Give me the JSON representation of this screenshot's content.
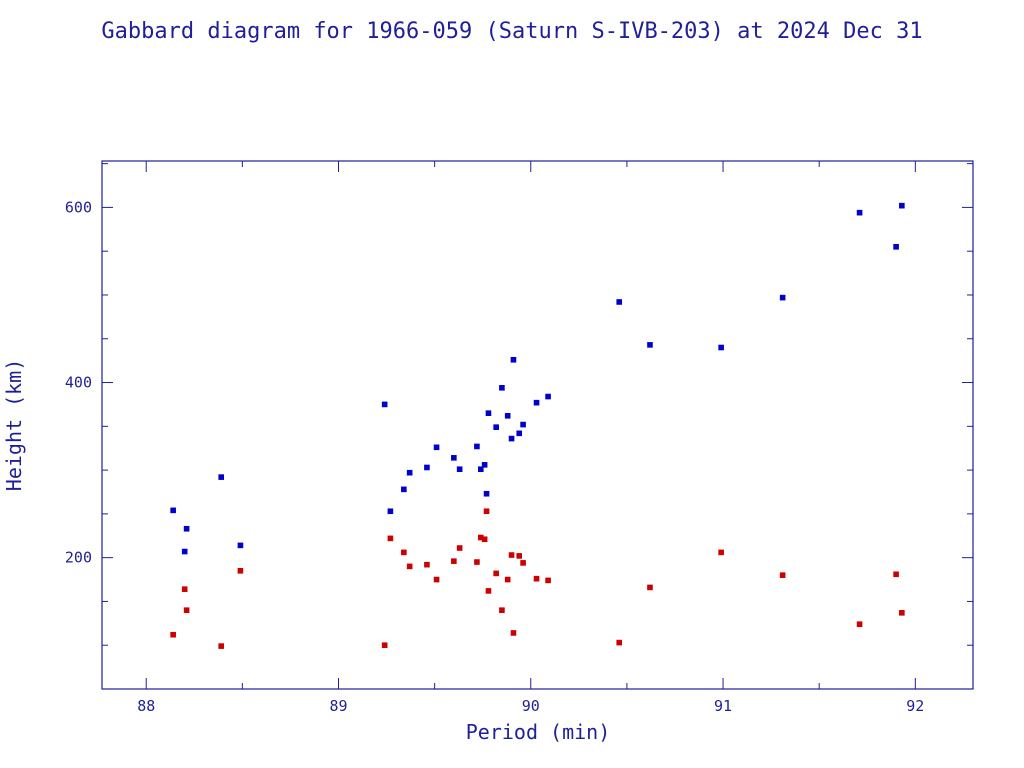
{
  "chart_data": {
    "type": "scatter",
    "title": "Gabbard diagram for 1966-059 (Saturn S-IVB-203) at 2024 Dec 31",
    "xlabel": "Period (min)",
    "ylabel": "Height (km)",
    "xlim": [
      87.77,
      92.3
    ],
    "ylim": [
      50,
      653
    ],
    "x_major_ticks": [
      88,
      89,
      90,
      91,
      92
    ],
    "x_minor_step": 0.5,
    "y_major_ticks": [
      200,
      400,
      600
    ],
    "y_minor_step": 50,
    "grid": false,
    "colors": {
      "text": "#1f1f99",
      "axis": "#1f1f99",
      "apogee": "#0000cc",
      "perigee": "#cc0000"
    },
    "series": [
      {
        "role": "apogee",
        "color": "#0000cc",
        "points": [
          [
            88.14,
            254
          ],
          [
            88.2,
            207
          ],
          [
            88.21,
            233
          ],
          [
            88.39,
            292
          ],
          [
            88.49,
            214
          ],
          [
            89.24,
            375
          ],
          [
            89.27,
            253
          ],
          [
            89.34,
            278
          ],
          [
            89.37,
            297
          ],
          [
            89.46,
            303
          ],
          [
            89.51,
            326
          ],
          [
            89.6,
            314
          ],
          [
            89.63,
            301
          ],
          [
            89.72,
            327
          ],
          [
            89.74,
            301
          ],
          [
            89.76,
            306
          ],
          [
            89.77,
            273
          ],
          [
            89.78,
            365
          ],
          [
            89.82,
            349
          ],
          [
            89.85,
            394
          ],
          [
            89.88,
            362
          ],
          [
            89.9,
            336
          ],
          [
            89.91,
            426
          ],
          [
            89.94,
            342
          ],
          [
            89.96,
            352
          ],
          [
            90.03,
            377
          ],
          [
            90.09,
            384
          ],
          [
            90.46,
            492
          ],
          [
            90.62,
            443
          ],
          [
            90.99,
            440
          ],
          [
            91.31,
            497
          ],
          [
            91.71,
            594
          ],
          [
            91.9,
            555
          ],
          [
            91.93,
            602
          ]
        ]
      },
      {
        "role": "perigee",
        "color": "#cc0000",
        "points": [
          [
            88.14,
            112
          ],
          [
            88.2,
            164
          ],
          [
            88.21,
            140
          ],
          [
            88.39,
            99
          ],
          [
            88.49,
            185
          ],
          [
            89.24,
            100
          ],
          [
            89.27,
            222
          ],
          [
            89.34,
            206
          ],
          [
            89.37,
            190
          ],
          [
            89.46,
            192
          ],
          [
            89.51,
            175
          ],
          [
            89.6,
            196
          ],
          [
            89.63,
            211
          ],
          [
            89.72,
            195
          ],
          [
            89.74,
            223
          ],
          [
            89.76,
            221
          ],
          [
            89.77,
            253
          ],
          [
            89.78,
            162
          ],
          [
            89.82,
            182
          ],
          [
            89.85,
            140
          ],
          [
            89.88,
            175
          ],
          [
            89.9,
            203
          ],
          [
            89.91,
            114
          ],
          [
            89.94,
            202
          ],
          [
            89.96,
            194
          ],
          [
            90.03,
            176
          ],
          [
            90.09,
            174
          ],
          [
            90.46,
            103
          ],
          [
            90.62,
            166
          ],
          [
            90.99,
            206
          ],
          [
            91.31,
            180
          ],
          [
            91.71,
            124
          ],
          [
            91.9,
            181
          ],
          [
            91.93,
            137
          ]
        ]
      }
    ]
  }
}
